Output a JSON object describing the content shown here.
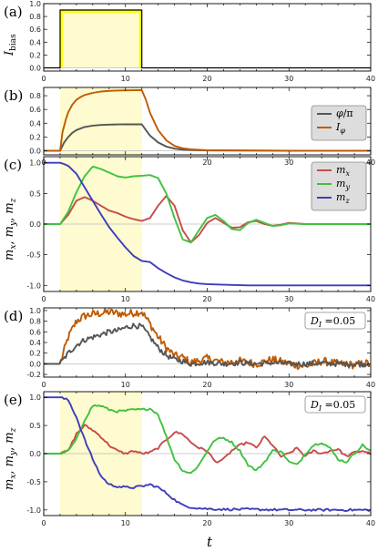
{
  "figure": {
    "x_axis_label": "t",
    "x_ticks": [
      0,
      10,
      20,
      30,
      40
    ],
    "pulse": {
      "start": 2,
      "end": 12
    },
    "colors": {
      "shade": "#fdfbcf",
      "pulse_fill": "#ffff00",
      "phi": "#555555",
      "Iphi": "#c05a00",
      "mx": "#c84a4a",
      "my": "#3fc23f",
      "mz": "#3d3dbd"
    }
  },
  "chart_data": [
    {
      "panel": "(a)",
      "type": "line",
      "ylabel": "I_bias",
      "ylabel_main": "I",
      "ylabel_sub": "bias",
      "xlim": [
        0,
        40
      ],
      "ylim": [
        -0.05,
        1.0
      ],
      "y_ticks": [
        "0.0",
        "0.2",
        "0.4",
        "0.6",
        "0.8",
        "1.0"
      ],
      "series": [
        {
          "key": "Ibias",
          "x": [
            0,
            2,
            2,
            12,
            12,
            40
          ],
          "y": [
            0,
            0,
            0.9,
            0.9,
            0,
            0
          ]
        }
      ]
    },
    {
      "panel": "(b)",
      "type": "line",
      "xlim": [
        0,
        40
      ],
      "ylim": [
        -0.06,
        0.92
      ],
      "y_ticks": [
        "0.0",
        "0.2",
        "0.4",
        "0.6",
        "0.8"
      ],
      "legend": {
        "position": "right",
        "entries": [
          {
            "key": "phi",
            "label_main": "φ",
            "label_rest": "/π"
          },
          {
            "key": "Iphi",
            "label_main": "I",
            "label_sub": "φ"
          }
        ]
      },
      "series": [
        {
          "key": "phi",
          "x": [
            0,
            2,
            2.5,
            3,
            3.5,
            4,
            5,
            6,
            7,
            8,
            9,
            10,
            11,
            12,
            12.5,
            13,
            14,
            15,
            16,
            17,
            18,
            20,
            25,
            30,
            35,
            40
          ],
          "y": [
            0,
            0,
            0.12,
            0.2,
            0.26,
            0.3,
            0.345,
            0.365,
            0.375,
            0.38,
            0.382,
            0.383,
            0.383,
            0.383,
            0.3,
            0.22,
            0.12,
            0.06,
            0.03,
            0.015,
            0.01,
            0.004,
            0.002,
            0.001,
            0.001,
            0.0
          ]
        },
        {
          "key": "Iphi",
          "x": [
            0,
            2,
            2.3,
            2.7,
            3,
            3.5,
            4,
            4.5,
            5,
            6,
            7,
            8,
            9,
            10,
            11,
            12,
            12.5,
            13,
            14,
            15,
            16,
            17,
            18,
            20,
            25,
            30,
            35,
            40
          ],
          "y": [
            0,
            0,
            0.27,
            0.45,
            0.56,
            0.67,
            0.74,
            0.78,
            0.81,
            0.84,
            0.86,
            0.87,
            0.875,
            0.878,
            0.879,
            0.88,
            0.74,
            0.55,
            0.3,
            0.15,
            0.07,
            0.035,
            0.02,
            0.008,
            0.003,
            0.001,
            0.001,
            0.0
          ]
        }
      ]
    },
    {
      "panel": "(c)",
      "type": "line",
      "ylabel_parts": [
        "m",
        "x",
        ", ",
        "m",
        "y",
        ", ",
        "m",
        "z"
      ],
      "xlim": [
        0,
        40
      ],
      "ylim": [
        -1.1,
        1.1
      ],
      "y_ticks": [
        "-1.0",
        "-0.5",
        "0.0",
        "0.5",
        "1.0"
      ],
      "legend": {
        "position": "top-right",
        "entries": [
          {
            "key": "mx",
            "label_main": "m",
            "label_sub": "x"
          },
          {
            "key": "my",
            "label_main": "m",
            "label_sub": "y"
          },
          {
            "key": "mz",
            "label_main": "m",
            "label_sub": "z"
          }
        ]
      },
      "series": [
        {
          "key": "mx",
          "x": [
            0,
            2,
            3,
            4,
            5,
            6,
            7,
            8,
            9,
            10,
            11,
            12,
            13,
            14,
            15,
            16,
            17,
            18,
            19,
            20,
            21,
            22,
            23,
            24,
            25,
            26,
            27,
            28,
            29,
            30,
            32,
            35,
            40
          ],
          "y": [
            0,
            0,
            0.15,
            0.38,
            0.44,
            0.38,
            0.3,
            0.22,
            0.18,
            0.12,
            0.08,
            0.05,
            0.1,
            0.3,
            0.46,
            0.3,
            -0.1,
            -0.3,
            -0.18,
            0.02,
            0.1,
            0.02,
            -0.06,
            -0.05,
            0.03,
            0.05,
            0.0,
            -0.03,
            -0.01,
            0.02,
            0.0,
            0.0,
            0.0
          ]
        },
        {
          "key": "my",
          "x": [
            0,
            2,
            3,
            4,
            5,
            6,
            7,
            8,
            9,
            10,
            11,
            12,
            13,
            14,
            15,
            16,
            17,
            18,
            19,
            20,
            21,
            22,
            23,
            24,
            25,
            26,
            27,
            28,
            29,
            30,
            32,
            35,
            40
          ],
          "y": [
            0,
            0,
            0.2,
            0.52,
            0.78,
            0.94,
            0.9,
            0.84,
            0.78,
            0.76,
            0.78,
            0.79,
            0.8,
            0.75,
            0.5,
            0.1,
            -0.25,
            -0.3,
            -0.1,
            0.1,
            0.15,
            0.05,
            -0.08,
            -0.1,
            0.02,
            0.07,
            0.02,
            -0.03,
            -0.02,
            0.01,
            0.0,
            0.0,
            0.0
          ]
        },
        {
          "key": "mz",
          "x": [
            0,
            2,
            2.5,
            3,
            4,
            5,
            6,
            7,
            8,
            9,
            10,
            11,
            12,
            13,
            14,
            15,
            16,
            17,
            18,
            19,
            20,
            22,
            25,
            30,
            35,
            40
          ],
          "y": [
            1.0,
            1.0,
            0.98,
            0.95,
            0.82,
            0.6,
            0.38,
            0.16,
            -0.05,
            -0.22,
            -0.38,
            -0.52,
            -0.6,
            -0.62,
            -0.72,
            -0.8,
            -0.87,
            -0.92,
            -0.95,
            -0.97,
            -0.98,
            -0.99,
            -1.0,
            -1.0,
            -1.0,
            -1.0
          ]
        }
      ]
    },
    {
      "panel": "(d)",
      "type": "line",
      "xlim": [
        0,
        40
      ],
      "ylim": [
        -0.25,
        1.05
      ],
      "y_ticks": [
        "-0.2",
        "0.0",
        "0.2",
        "0.4",
        "0.6",
        "0.8",
        "1.0"
      ],
      "annotation": "D_I =0.05",
      "annotation_main": "D",
      "annotation_sub": "I",
      "annotation_rest": " =0.05",
      "noise_amplitude": 0.05,
      "series": [
        {
          "key": "Iphi",
          "x": [
            0,
            2,
            3,
            4,
            5,
            6,
            7,
            8,
            9,
            10,
            11,
            12,
            13,
            14,
            15,
            16,
            17,
            18,
            19,
            20,
            22,
            24,
            26,
            28,
            30,
            32,
            34,
            36,
            38,
            40
          ],
          "y": [
            0,
            0,
            0.5,
            0.8,
            0.9,
            0.93,
            0.95,
            0.97,
            0.95,
            0.93,
            0.96,
            0.98,
            0.75,
            0.5,
            0.3,
            0.15,
            0.12,
            0.02,
            0.06,
            0.1,
            0.02,
            0.05,
            0.0,
            0.08,
            0.0,
            -0.05,
            0.05,
            0.0,
            -0.02,
            0.02
          ]
        },
        {
          "key": "phi",
          "x": [
            0,
            2,
            3,
            4,
            5,
            6,
            7,
            8,
            9,
            10,
            11,
            12,
            13,
            14,
            15,
            16,
            17,
            18,
            20,
            22,
            24,
            26,
            28,
            30,
            32,
            34,
            36,
            38,
            40
          ],
          "y": [
            0,
            0,
            0.2,
            0.35,
            0.45,
            0.5,
            0.55,
            0.6,
            0.62,
            0.68,
            0.72,
            0.7,
            0.5,
            0.3,
            0.16,
            0.08,
            0.05,
            0.0,
            0.03,
            0.0,
            0.02,
            0.0,
            0.02,
            0.0,
            0.0,
            0.01,
            0.0,
            -0.01,
            0.0
          ]
        }
      ]
    },
    {
      "panel": "(e)",
      "type": "line",
      "ylabel_parts": [
        "m",
        "x",
        ", ",
        "m",
        "y",
        ", ",
        "m",
        "z"
      ],
      "xlim": [
        0,
        40
      ],
      "ylim": [
        -1.1,
        1.1
      ],
      "y_ticks": [
        "-1.0",
        "-0.5",
        "0.0",
        "0.5",
        "1.0"
      ],
      "annotation": "D_I =0.05",
      "annotation_main": "D",
      "annotation_sub": "I",
      "annotation_rest": " =0.05",
      "series": [
        {
          "key": "mx",
          "x": [
            0,
            2,
            3,
            4,
            5,
            6,
            7,
            8,
            9,
            10,
            11,
            12,
            13,
            14,
            15,
            16,
            17,
            18,
            19,
            20,
            21,
            22,
            23,
            24,
            25,
            26,
            27,
            28,
            29,
            30,
            31,
            32,
            33,
            34,
            35,
            36,
            37,
            38,
            39,
            40
          ],
          "y": [
            0,
            0,
            0.05,
            0.35,
            0.5,
            0.42,
            0.3,
            0.15,
            0.05,
            0.0,
            0.05,
            0.0,
            0.02,
            0.1,
            0.25,
            0.38,
            0.35,
            0.2,
            0.1,
            0.05,
            -0.15,
            -0.1,
            0.05,
            0.15,
            0.2,
            0.1,
            0.3,
            0.15,
            -0.05,
            0.0,
            0.1,
            -0.05,
            0.05,
            0.0,
            0.05,
            0.08,
            -0.05,
            0.02,
            0.05,
            0.0
          ]
        },
        {
          "key": "my",
          "x": [
            0,
            2,
            3,
            4,
            5,
            6,
            7,
            8,
            9,
            10,
            11,
            12,
            13,
            14,
            15,
            16,
            17,
            18,
            19,
            20,
            21,
            22,
            23,
            24,
            25,
            26,
            27,
            28,
            29,
            30,
            31,
            32,
            33,
            34,
            35,
            36,
            37,
            38,
            39,
            40
          ],
          "y": [
            0,
            0,
            0.05,
            0.25,
            0.6,
            0.85,
            0.85,
            0.78,
            0.75,
            0.76,
            0.78,
            0.78,
            0.8,
            0.7,
            0.3,
            -0.1,
            -0.3,
            -0.35,
            -0.2,
            0.05,
            0.25,
            0.28,
            0.2,
            0.05,
            -0.2,
            -0.3,
            -0.15,
            0.05,
            0.05,
            -0.15,
            -0.2,
            0.0,
            0.15,
            0.2,
            0.1,
            -0.1,
            -0.15,
            0.0,
            0.15,
            0.05
          ]
        },
        {
          "key": "mz",
          "x": [
            0,
            2,
            3,
            4,
            5,
            6,
            7,
            8,
            9,
            10,
            11,
            12,
            13,
            14,
            15,
            16,
            17,
            18,
            19,
            20,
            22,
            25,
            30,
            35,
            40
          ],
          "y": [
            1.0,
            1.0,
            0.95,
            0.65,
            0.25,
            -0.1,
            -0.4,
            -0.55,
            -0.58,
            -0.6,
            -0.6,
            -0.58,
            -0.55,
            -0.6,
            -0.7,
            -0.82,
            -0.92,
            -0.95,
            -0.97,
            -0.98,
            -0.99,
            -0.99,
            -1.0,
            -1.0,
            -1.0
          ]
        }
      ]
    }
  ]
}
